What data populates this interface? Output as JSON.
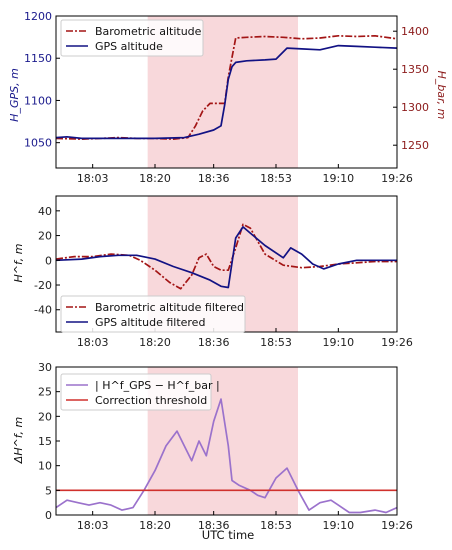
{
  "colors": {
    "baro": "#a31515",
    "gps": "#121284",
    "diff": "#9b72cc",
    "threshold": "#d0312d",
    "shade": "#f2b8bd",
    "ylabel_left": "#1a1a8c",
    "ylabel_right": "#8b1a1a"
  },
  "x_axis": {
    "label": "UTC time",
    "range": [
      "17:53",
      "19:26"
    ],
    "ticks": [
      "18:03",
      "18:20",
      "18:36",
      "18:53",
      "19:10",
      "19:26"
    ]
  },
  "shaded_interval": [
    "18:18",
    "18:59"
  ],
  "chart_data": [
    {
      "type": "line",
      "id": "altitude",
      "ylabel_left": "H_GPS, m",
      "ylabel_right": "H_bar, m",
      "ylim": [
        1020,
        1200
      ],
      "yticks": [
        1050,
        1100,
        1150,
        1200
      ],
      "y2lim": [
        1220,
        1420
      ],
      "y2ticks": [
        1250,
        1300,
        1350,
        1400
      ],
      "legend_position": "top-left",
      "series": [
        {
          "name": "Barometric altitude",
          "axis": "right",
          "style": "dashdot",
          "x": [
            "17:53",
            "18:00",
            "18:05",
            "18:10",
            "18:15",
            "18:20",
            "18:25",
            "18:29",
            "18:31",
            "18:33",
            "18:35",
            "18:37",
            "18:39",
            "18:40",
            "18:42",
            "18:45",
            "18:50",
            "18:55",
            "19:00",
            "19:05",
            "19:10",
            "19:15",
            "19:20",
            "19:26"
          ],
          "y": [
            1259,
            1258,
            1259,
            1260,
            1259,
            1259,
            1258,
            1260,
            1275,
            1295,
            1305,
            1305,
            1305,
            1340,
            1391,
            1392,
            1393,
            1392,
            1390,
            1391,
            1394,
            1393,
            1394,
            1390
          ]
        },
        {
          "name": "GPS altitude",
          "axis": "left",
          "style": "solid",
          "x": [
            "17:53",
            "17:56",
            "18:00",
            "18:10",
            "18:20",
            "18:28",
            "18:32",
            "18:36",
            "18:38",
            "18:39",
            "18:40",
            "18:41",
            "18:42",
            "18:45",
            "18:50",
            "18:53",
            "18:56",
            "19:00",
            "19:05",
            "19:10",
            "19:15",
            "19:20",
            "19:26"
          ],
          "y": [
            1056,
            1057,
            1055,
            1055,
            1055,
            1056,
            1060,
            1065,
            1070,
            1095,
            1125,
            1140,
            1145,
            1147,
            1148,
            1149,
            1162,
            1161,
            1160,
            1165,
            1164,
            1163,
            1162
          ]
        }
      ]
    },
    {
      "type": "line",
      "id": "filtered",
      "ylabel": "H^f, m",
      "ylim": [
        -58,
        52
      ],
      "yticks": [
        -40,
        -20,
        0,
        20,
        40
      ],
      "legend_position": "bottom-left",
      "series": [
        {
          "name": "Barometric altitude filtered",
          "style": "dashdot",
          "x": [
            "17:53",
            "17:58",
            "18:03",
            "18:08",
            "18:13",
            "18:16",
            "18:20",
            "18:24",
            "18:27",
            "18:30",
            "18:32",
            "18:34",
            "18:36",
            "18:38",
            "18:40",
            "18:42",
            "18:44",
            "18:46",
            "18:50",
            "18:55",
            "19:00",
            "19:05",
            "19:10",
            "19:15",
            "19:20",
            "19:26"
          ],
          "y": [
            1,
            3,
            3,
            5,
            4,
            0,
            -8,
            -18,
            -23,
            -12,
            2,
            5,
            -5,
            -8,
            -8,
            10,
            29,
            26,
            5,
            -4,
            -6,
            -5,
            -3,
            -2,
            -1,
            -1
          ]
        },
        {
          "name": "GPS altitude filtered",
          "style": "solid",
          "x": [
            "17:53",
            "18:00",
            "18:05",
            "18:10",
            "18:15",
            "18:20",
            "18:25",
            "18:30",
            "18:35",
            "18:38",
            "18:40",
            "18:42",
            "18:44",
            "18:46",
            "18:50",
            "18:55",
            "18:57",
            "19:00",
            "19:03",
            "19:06",
            "19:10",
            "19:15",
            "19:20",
            "19:26"
          ],
          "y": [
            0,
            1,
            3,
            4,
            4,
            1,
            -5,
            -10,
            -16,
            -21,
            -22,
            18,
            27,
            22,
            12,
            2,
            10,
            5,
            -3,
            -7,
            -3,
            0,
            0,
            0
          ]
        }
      ]
    },
    {
      "type": "line",
      "id": "difference",
      "ylabel": "ΔH^f, m",
      "ylim": [
        0,
        30
      ],
      "yticks": [
        0,
        5,
        10,
        15,
        20,
        25,
        30
      ],
      "legend_position": "top-left",
      "series": [
        {
          "name": "| H^f_GPS − H^f_bar |",
          "style": "solid",
          "x": [
            "17:53",
            "17:56",
            "17:59",
            "18:02",
            "18:05",
            "18:08",
            "18:11",
            "18:14",
            "18:17",
            "18:20",
            "18:23",
            "18:26",
            "18:28",
            "18:30",
            "18:32",
            "18:34",
            "18:36",
            "18:38",
            "18:40",
            "18:41",
            "18:43",
            "18:46",
            "18:48",
            "18:50",
            "18:53",
            "18:56",
            "18:59",
            "19:02",
            "19:05",
            "19:08",
            "19:10",
            "19:13",
            "19:16",
            "19:20",
            "19:23",
            "19:26"
          ],
          "y": [
            1.5,
            3,
            2.5,
            2,
            2.5,
            2,
            1,
            1.5,
            5,
            9,
            14,
            17,
            14,
            11,
            15,
            12,
            19,
            23.5,
            14,
            7,
            6,
            5,
            4,
            3.5,
            7.5,
            9.5,
            5,
            1,
            2.5,
            3,
            2,
            0.5,
            0.5,
            1,
            0.5,
            1.5
          ]
        },
        {
          "name": "Correction threshold",
          "style": "solid",
          "x": [
            "17:53",
            "19:26"
          ],
          "y": [
            5,
            5
          ]
        }
      ]
    }
  ]
}
